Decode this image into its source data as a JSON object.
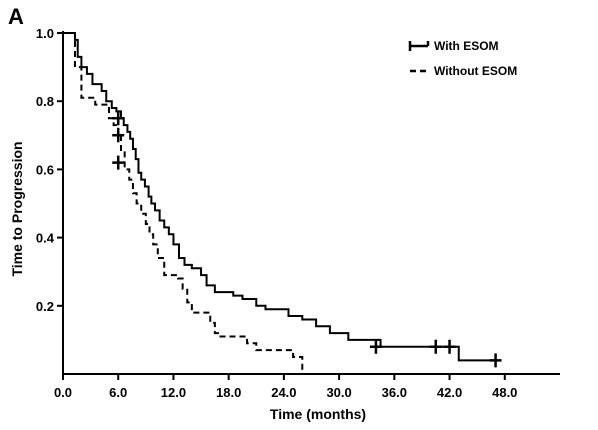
{
  "panel_label": "A",
  "chart_data": {
    "type": "line",
    "xlabel": "Time (months)",
    "ylabel": "Time to Progression",
    "xlim": [
      0,
      54
    ],
    "ylim": [
      0,
      1.0
    ],
    "x_ticks": [
      "0.0",
      "6.0",
      "12.0",
      "18.0",
      "24.0",
      "30.0",
      "36.0",
      "42.0",
      "48.0"
    ],
    "x_tick_values": [
      0,
      6,
      12,
      18,
      24,
      30,
      36,
      42,
      48
    ],
    "y_ticks": [
      "0.2",
      "0.4",
      "0.6",
      "0.8",
      "1.0"
    ],
    "y_tick_values": [
      0.2,
      0.4,
      0.6,
      0.8,
      1.0
    ],
    "grid": false,
    "legend": "top-right",
    "series": [
      {
        "name": "With ESOM",
        "style": "solid",
        "color": "#000000",
        "steps": [
          [
            0,
            1.0
          ],
          [
            1.3,
            0.98
          ],
          [
            1.6,
            0.93
          ],
          [
            2.0,
            0.9
          ],
          [
            2.6,
            0.88
          ],
          [
            3.2,
            0.85
          ],
          [
            4.2,
            0.83
          ],
          [
            4.7,
            0.8
          ],
          [
            5.3,
            0.78
          ],
          [
            5.8,
            0.77
          ],
          [
            6.3,
            0.75
          ],
          [
            6.6,
            0.73
          ],
          [
            7.0,
            0.71
          ],
          [
            7.3,
            0.69
          ],
          [
            7.6,
            0.66
          ],
          [
            7.9,
            0.63
          ],
          [
            8.2,
            0.59
          ],
          [
            8.5,
            0.57
          ],
          [
            8.9,
            0.55
          ],
          [
            9.3,
            0.52
          ],
          [
            9.6,
            0.5
          ],
          [
            10.0,
            0.48
          ],
          [
            10.5,
            0.45
          ],
          [
            11.0,
            0.43
          ],
          [
            11.5,
            0.41
          ],
          [
            12.0,
            0.38
          ],
          [
            12.6,
            0.34
          ],
          [
            13.2,
            0.32
          ],
          [
            14.0,
            0.31
          ],
          [
            15.0,
            0.29
          ],
          [
            15.6,
            0.26
          ],
          [
            16.5,
            0.24
          ],
          [
            18.5,
            0.23
          ],
          [
            19.5,
            0.22
          ],
          [
            21.0,
            0.2
          ],
          [
            22.0,
            0.19
          ],
          [
            24.5,
            0.17
          ],
          [
            26.0,
            0.16
          ],
          [
            27.5,
            0.14
          ],
          [
            29.0,
            0.12
          ],
          [
            31.0,
            0.1
          ],
          [
            34.5,
            0.08
          ],
          [
            43.0,
            0.04
          ],
          [
            47.5,
            0.04
          ]
        ],
        "censored": [
          [
            6.0,
            0.75
          ],
          [
            34.0,
            0.08
          ],
          [
            40.5,
            0.08
          ],
          [
            42.0,
            0.08
          ],
          [
            47.0,
            0.04
          ]
        ]
      },
      {
        "name": "Without ESOM",
        "style": "dashed",
        "color": "#000000",
        "steps": [
          [
            0,
            1.0
          ],
          [
            1.3,
            0.9
          ],
          [
            2.0,
            0.81
          ],
          [
            3.5,
            0.79
          ],
          [
            5.0,
            0.75
          ],
          [
            5.5,
            0.73
          ],
          [
            6.0,
            0.7
          ],
          [
            6.3,
            0.65
          ],
          [
            6.7,
            0.6
          ],
          [
            7.2,
            0.57
          ],
          [
            7.6,
            0.53
          ],
          [
            8.0,
            0.5
          ],
          [
            8.5,
            0.47
          ],
          [
            9.0,
            0.44
          ],
          [
            9.4,
            0.41
          ],
          [
            9.8,
            0.38
          ],
          [
            10.3,
            0.34
          ],
          [
            11.0,
            0.29
          ],
          [
            12.5,
            0.28
          ],
          [
            13.0,
            0.25
          ],
          [
            13.5,
            0.21
          ],
          [
            14.0,
            0.18
          ],
          [
            16.0,
            0.15
          ],
          [
            16.5,
            0.12
          ],
          [
            17.0,
            0.11
          ],
          [
            20.0,
            0.09
          ],
          [
            21.0,
            0.07
          ],
          [
            25.0,
            0.05
          ],
          [
            26.0,
            0.0
          ]
        ],
        "censored": [
          [
            6.0,
            0.7
          ],
          [
            6.0,
            0.62
          ]
        ]
      }
    ]
  }
}
